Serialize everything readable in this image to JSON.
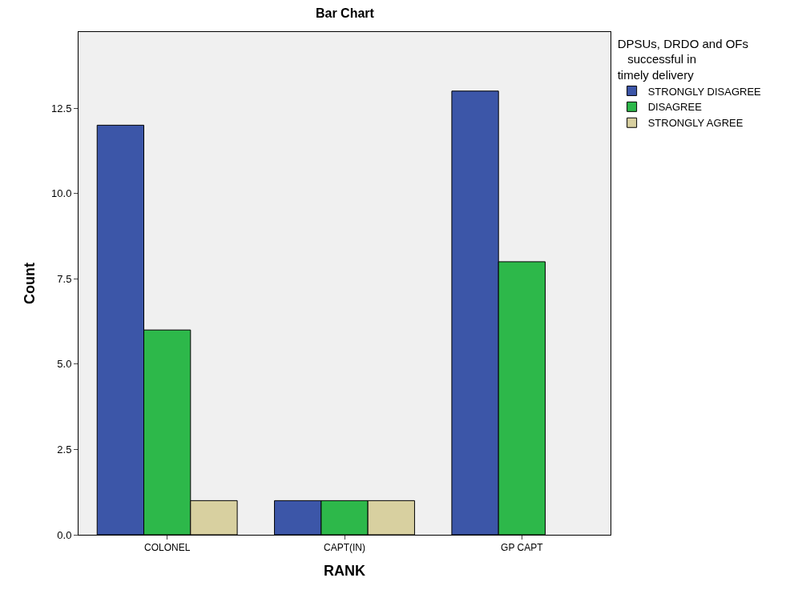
{
  "chart_data": {
    "type": "bar",
    "title": "Bar Chart",
    "xlabel": "RANK",
    "ylabel": "Count",
    "legend_title": "DPSUs, DRDO and OFs   successful in timely delivery",
    "categories": [
      "COLONEL",
      "CAPT(IN)",
      "GP CAPT"
    ],
    "series": [
      {
        "name": "STRONGLY DISAGREE",
        "color": "#3c56a8",
        "values": [
          12,
          1,
          13
        ]
      },
      {
        "name": "DISAGREE",
        "color": "#2db84a",
        "values": [
          6,
          1,
          8
        ]
      },
      {
        "name": "STRONGLY AGREE",
        "color": "#d8d0a0",
        "values": [
          1,
          1,
          null
        ]
      }
    ],
    "ylim": [
      0,
      14.73
    ],
    "yticks": [
      {
        "value": 0,
        "label": "0.0"
      },
      {
        "value": 2.5,
        "label": "2.5"
      },
      {
        "value": 5,
        "label": "5.0"
      },
      {
        "value": 7.5,
        "label": "7.5"
      },
      {
        "value": 10,
        "label": "10.0"
      },
      {
        "value": 12.5,
        "label": "12.5"
      }
    ],
    "grid": false,
    "legend": "top right"
  }
}
